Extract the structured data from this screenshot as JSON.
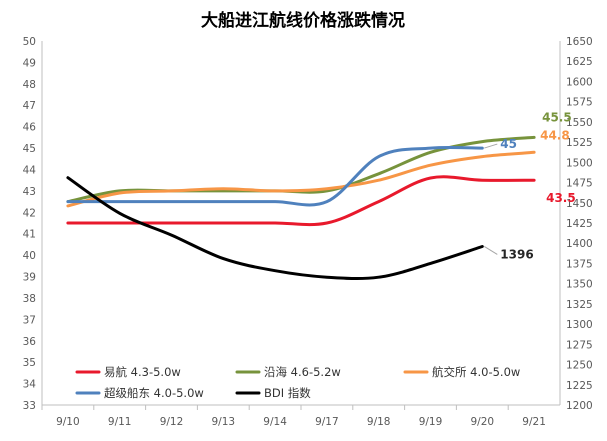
{
  "chart_data": {
    "type": "line",
    "title": "大船进江航线价格涨跌情况",
    "categories": [
      "9/10",
      "9/11",
      "9/12",
      "9/13",
      "9/14",
      "9/17",
      "9/18",
      "9/19",
      "9/20",
      "9/21"
    ],
    "y_left": {
      "min": 33,
      "max": 50,
      "step": 1
    },
    "y_right": {
      "min": 1200,
      "max": 1650,
      "step": 25
    },
    "grid": false,
    "legend_position": "bottom-inside",
    "series": [
      {
        "name": "易航 4.3-5.0w",
        "axis": "left",
        "color": "#e8192c",
        "values": [
          41.5,
          41.5,
          41.5,
          41.5,
          41.5,
          41.5,
          42.5,
          43.6,
          43.5,
          43.5
        ],
        "end_label": "43.5"
      },
      {
        "name": "沿海 4.6-5.2w",
        "axis": "left",
        "color": "#77933c",
        "values": [
          42.5,
          43.0,
          43.0,
          43.0,
          43.0,
          43.0,
          43.8,
          44.8,
          45.3,
          45.5
        ],
        "end_label": "45.5"
      },
      {
        "name": "航交所 4.0-5.0w",
        "axis": "left",
        "color": "#f79646",
        "values": [
          42.3,
          42.9,
          43.0,
          43.1,
          43.0,
          43.1,
          43.5,
          44.2,
          44.6,
          44.8
        ],
        "end_label": "44.8"
      },
      {
        "name": "超级船东 4.0-5.0w",
        "axis": "left",
        "color": "#4f81bd",
        "values": [
          42.5,
          42.5,
          42.5,
          42.5,
          42.5,
          42.5,
          44.6,
          45.0,
          45.0,
          null
        ],
        "end_label": "45"
      },
      {
        "name": "BDI 指数",
        "axis": "right",
        "color": "#000000",
        "values": [
          1481,
          1437,
          1410,
          1381,
          1366,
          1358,
          1358,
          1375,
          1396,
          null
        ],
        "end_label": "1396"
      }
    ]
  }
}
